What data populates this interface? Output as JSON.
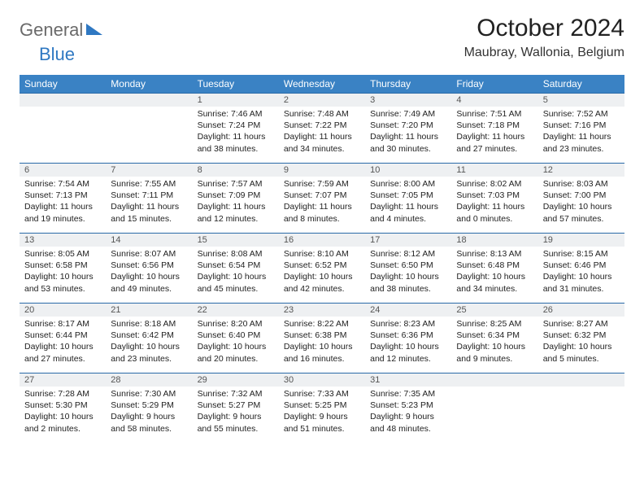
{
  "brand": {
    "part1": "General",
    "part2": "Blue"
  },
  "title": "October 2024",
  "location": "Maubray, Wallonia, Belgium",
  "colors": {
    "header_bg": "#3a82c4",
    "header_border": "#2a6aa8",
    "daynum_bg": "#eef0f2",
    "brand_gray": "#6a6a6a",
    "brand_blue": "#2f78c2"
  },
  "weekdays": [
    "Sunday",
    "Monday",
    "Tuesday",
    "Wednesday",
    "Thursday",
    "Friday",
    "Saturday"
  ],
  "weeks": [
    [
      {
        "n": "",
        "sr": "",
        "ss": "",
        "dl": ""
      },
      {
        "n": "",
        "sr": "",
        "ss": "",
        "dl": ""
      },
      {
        "n": "1",
        "sr": "Sunrise: 7:46 AM",
        "ss": "Sunset: 7:24 PM",
        "dl": "Daylight: 11 hours and 38 minutes."
      },
      {
        "n": "2",
        "sr": "Sunrise: 7:48 AM",
        "ss": "Sunset: 7:22 PM",
        "dl": "Daylight: 11 hours and 34 minutes."
      },
      {
        "n": "3",
        "sr": "Sunrise: 7:49 AM",
        "ss": "Sunset: 7:20 PM",
        "dl": "Daylight: 11 hours and 30 minutes."
      },
      {
        "n": "4",
        "sr": "Sunrise: 7:51 AM",
        "ss": "Sunset: 7:18 PM",
        "dl": "Daylight: 11 hours and 27 minutes."
      },
      {
        "n": "5",
        "sr": "Sunrise: 7:52 AM",
        "ss": "Sunset: 7:16 PM",
        "dl": "Daylight: 11 hours and 23 minutes."
      }
    ],
    [
      {
        "n": "6",
        "sr": "Sunrise: 7:54 AM",
        "ss": "Sunset: 7:13 PM",
        "dl": "Daylight: 11 hours and 19 minutes."
      },
      {
        "n": "7",
        "sr": "Sunrise: 7:55 AM",
        "ss": "Sunset: 7:11 PM",
        "dl": "Daylight: 11 hours and 15 minutes."
      },
      {
        "n": "8",
        "sr": "Sunrise: 7:57 AM",
        "ss": "Sunset: 7:09 PM",
        "dl": "Daylight: 11 hours and 12 minutes."
      },
      {
        "n": "9",
        "sr": "Sunrise: 7:59 AM",
        "ss": "Sunset: 7:07 PM",
        "dl": "Daylight: 11 hours and 8 minutes."
      },
      {
        "n": "10",
        "sr": "Sunrise: 8:00 AM",
        "ss": "Sunset: 7:05 PM",
        "dl": "Daylight: 11 hours and 4 minutes."
      },
      {
        "n": "11",
        "sr": "Sunrise: 8:02 AM",
        "ss": "Sunset: 7:03 PM",
        "dl": "Daylight: 11 hours and 0 minutes."
      },
      {
        "n": "12",
        "sr": "Sunrise: 8:03 AM",
        "ss": "Sunset: 7:00 PM",
        "dl": "Daylight: 10 hours and 57 minutes."
      }
    ],
    [
      {
        "n": "13",
        "sr": "Sunrise: 8:05 AM",
        "ss": "Sunset: 6:58 PM",
        "dl": "Daylight: 10 hours and 53 minutes."
      },
      {
        "n": "14",
        "sr": "Sunrise: 8:07 AM",
        "ss": "Sunset: 6:56 PM",
        "dl": "Daylight: 10 hours and 49 minutes."
      },
      {
        "n": "15",
        "sr": "Sunrise: 8:08 AM",
        "ss": "Sunset: 6:54 PM",
        "dl": "Daylight: 10 hours and 45 minutes."
      },
      {
        "n": "16",
        "sr": "Sunrise: 8:10 AM",
        "ss": "Sunset: 6:52 PM",
        "dl": "Daylight: 10 hours and 42 minutes."
      },
      {
        "n": "17",
        "sr": "Sunrise: 8:12 AM",
        "ss": "Sunset: 6:50 PM",
        "dl": "Daylight: 10 hours and 38 minutes."
      },
      {
        "n": "18",
        "sr": "Sunrise: 8:13 AM",
        "ss": "Sunset: 6:48 PM",
        "dl": "Daylight: 10 hours and 34 minutes."
      },
      {
        "n": "19",
        "sr": "Sunrise: 8:15 AM",
        "ss": "Sunset: 6:46 PM",
        "dl": "Daylight: 10 hours and 31 minutes."
      }
    ],
    [
      {
        "n": "20",
        "sr": "Sunrise: 8:17 AM",
        "ss": "Sunset: 6:44 PM",
        "dl": "Daylight: 10 hours and 27 minutes."
      },
      {
        "n": "21",
        "sr": "Sunrise: 8:18 AM",
        "ss": "Sunset: 6:42 PM",
        "dl": "Daylight: 10 hours and 23 minutes."
      },
      {
        "n": "22",
        "sr": "Sunrise: 8:20 AM",
        "ss": "Sunset: 6:40 PM",
        "dl": "Daylight: 10 hours and 20 minutes."
      },
      {
        "n": "23",
        "sr": "Sunrise: 8:22 AM",
        "ss": "Sunset: 6:38 PM",
        "dl": "Daylight: 10 hours and 16 minutes."
      },
      {
        "n": "24",
        "sr": "Sunrise: 8:23 AM",
        "ss": "Sunset: 6:36 PM",
        "dl": "Daylight: 10 hours and 12 minutes."
      },
      {
        "n": "25",
        "sr": "Sunrise: 8:25 AM",
        "ss": "Sunset: 6:34 PM",
        "dl": "Daylight: 10 hours and 9 minutes."
      },
      {
        "n": "26",
        "sr": "Sunrise: 8:27 AM",
        "ss": "Sunset: 6:32 PM",
        "dl": "Daylight: 10 hours and 5 minutes."
      }
    ],
    [
      {
        "n": "27",
        "sr": "Sunrise: 7:28 AM",
        "ss": "Sunset: 5:30 PM",
        "dl": "Daylight: 10 hours and 2 minutes."
      },
      {
        "n": "28",
        "sr": "Sunrise: 7:30 AM",
        "ss": "Sunset: 5:29 PM",
        "dl": "Daylight: 9 hours and 58 minutes."
      },
      {
        "n": "29",
        "sr": "Sunrise: 7:32 AM",
        "ss": "Sunset: 5:27 PM",
        "dl": "Daylight: 9 hours and 55 minutes."
      },
      {
        "n": "30",
        "sr": "Sunrise: 7:33 AM",
        "ss": "Sunset: 5:25 PM",
        "dl": "Daylight: 9 hours and 51 minutes."
      },
      {
        "n": "31",
        "sr": "Sunrise: 7:35 AM",
        "ss": "Sunset: 5:23 PM",
        "dl": "Daylight: 9 hours and 48 minutes."
      },
      {
        "n": "",
        "sr": "",
        "ss": "",
        "dl": ""
      },
      {
        "n": "",
        "sr": "",
        "ss": "",
        "dl": ""
      }
    ]
  ]
}
